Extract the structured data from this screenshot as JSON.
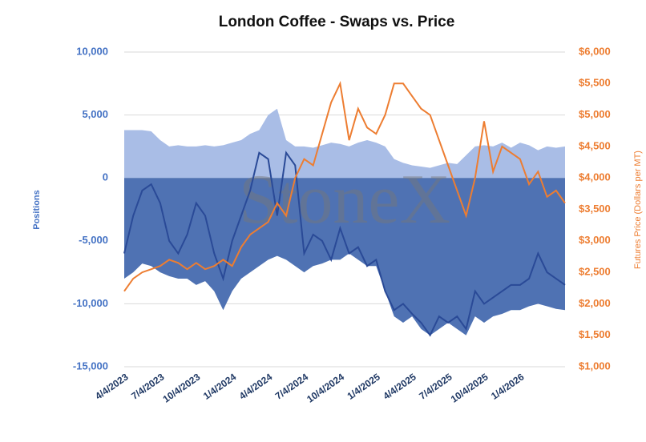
{
  "chart_data": {
    "type": "area-line",
    "title": "London Coffee - Swaps vs. Price",
    "watermark": "StoneX",
    "ylabel": "Positions",
    "y2label": "Futures Price (Dollars per MT)",
    "categories": [
      "4/4/2023",
      null,
      null,
      null,
      "7/4/2023",
      null,
      null,
      null,
      "10/4/2023",
      null,
      null,
      null,
      "1/4/2024",
      null,
      null,
      null,
      "4/4/2024",
      null,
      null,
      null,
      "7/4/2024",
      null,
      null,
      null,
      "10/4/2024",
      null,
      null,
      null,
      "1/4/2025",
      null,
      null,
      null,
      "4/4/2025",
      null,
      null,
      null,
      "7/4/2025",
      null,
      null,
      null,
      "10/4/2025",
      null,
      null,
      null,
      "1/4/2026",
      null,
      null,
      null,
      null,
      null
    ],
    "series": [
      {
        "kind": "area",
        "color": "#a9bde6",
        "values": [
          3800,
          3800,
          3800,
          3700,
          3000,
          2500,
          2600,
          2500,
          2500,
          2600,
          2500,
          2600,
          2800,
          3000,
          3500,
          3800,
          5000,
          5500,
          3000,
          2500,
          2500,
          2400,
          2600,
          2800,
          2700,
          2500,
          2800,
          3000,
          2800,
          2500,
          1500,
          1200,
          1000,
          900,
          800,
          1000,
          1200,
          1100,
          1800,
          2500,
          2600,
          2500,
          2800,
          2400,
          2800,
          2600,
          2200,
          2500,
          2400,
          2500
        ]
      },
      {
        "kind": "area",
        "color": "#4f72b3",
        "values": [
          -8000,
          -7500,
          -6800,
          -7000,
          -7500,
          -7800,
          -8000,
          -8000,
          -8500,
          -8200,
          -9000,
          -10500,
          -9000,
          -8000,
          -7500,
          -7000,
          -6500,
          -6200,
          -6500,
          -7000,
          -7500,
          -7000,
          -6800,
          -6500,
          -6500,
          -6000,
          -6500,
          -7000,
          -7000,
          -9000,
          -11000,
          -11500,
          -11000,
          -12000,
          -12500,
          -12000,
          -11500,
          -12000,
          -12500,
          -11000,
          -11500,
          -11000,
          -10800,
          -10500,
          -10500,
          -10200,
          -10000,
          -10200,
          -10400,
          -10500
        ]
      },
      {
        "kind": "line",
        "color": "#2a4a97",
        "values": [
          -6000,
          -3000,
          -1000,
          -500,
          -2000,
          -5000,
          -6000,
          -4500,
          -2000,
          -3000,
          -6000,
          -8000,
          -5000,
          -3000,
          -1000,
          2000,
          1500,
          -3000,
          2000,
          1000,
          -6000,
          -4500,
          -5000,
          -6500,
          -4000,
          -6000,
          -5500,
          -7000,
          -6500,
          -9000,
          -10500,
          -10000,
          -10800,
          -11500,
          -12500,
          -11000,
          -11500,
          -11000,
          -12000,
          -9000,
          -10000,
          -9500,
          -9000,
          -8500,
          -8500,
          -8000,
          -6000,
          -7500,
          -8000,
          -8500
        ]
      },
      {
        "kind": "line",
        "axis": "y2",
        "color": "#ed7d31",
        "values": [
          2200,
          2400,
          2500,
          2550,
          2600,
          2700,
          2650,
          2550,
          2650,
          2550,
          2600,
          2700,
          2600,
          2900,
          3100,
          3200,
          3300,
          3600,
          3400,
          4000,
          4300,
          4200,
          4700,
          5200,
          5500,
          4600,
          5100,
          4800,
          4700,
          5000,
          5500,
          5500,
          5300,
          5100,
          5000,
          4600,
          4200,
          3800,
          3400,
          4000,
          4900,
          4100,
          4500,
          4400,
          4300,
          3900,
          4100,
          3700,
          3800,
          3600
        ]
      }
    ],
    "ylim": [
      -15000,
      10000
    ],
    "yticks": [
      {
        "value": 10000,
        "label": "10,000"
      },
      {
        "value": 5000,
        "label": "5,000"
      },
      0,
      {
        "value": -5000,
        "label": "-5,000"
      },
      {
        "value": -10000,
        "label": "-10,000"
      },
      {
        "value": -15000,
        "label": "-15,000"
      }
    ],
    "y2lim": [
      1000,
      6000
    ],
    "y2ticks": [
      {
        "value": 6000,
        "label": "$6,000"
      },
      {
        "value": 5500,
        "label": "$5,500"
      },
      {
        "value": 5000,
        "label": "$5,000"
      },
      {
        "value": 4500,
        "label": "$4,500"
      },
      {
        "value": 4000,
        "label": "$4,000"
      },
      {
        "value": 3500,
        "label": "$3,500"
      },
      {
        "value": 3000,
        "label": "$3,000"
      },
      {
        "value": 2500,
        "label": "$2,500"
      },
      {
        "value": 2000,
        "label": "$2,000"
      },
      {
        "value": 1500,
        "label": "$1,500"
      },
      {
        "value": 1000,
        "label": "$1,000"
      }
    ],
    "grid": true
  }
}
